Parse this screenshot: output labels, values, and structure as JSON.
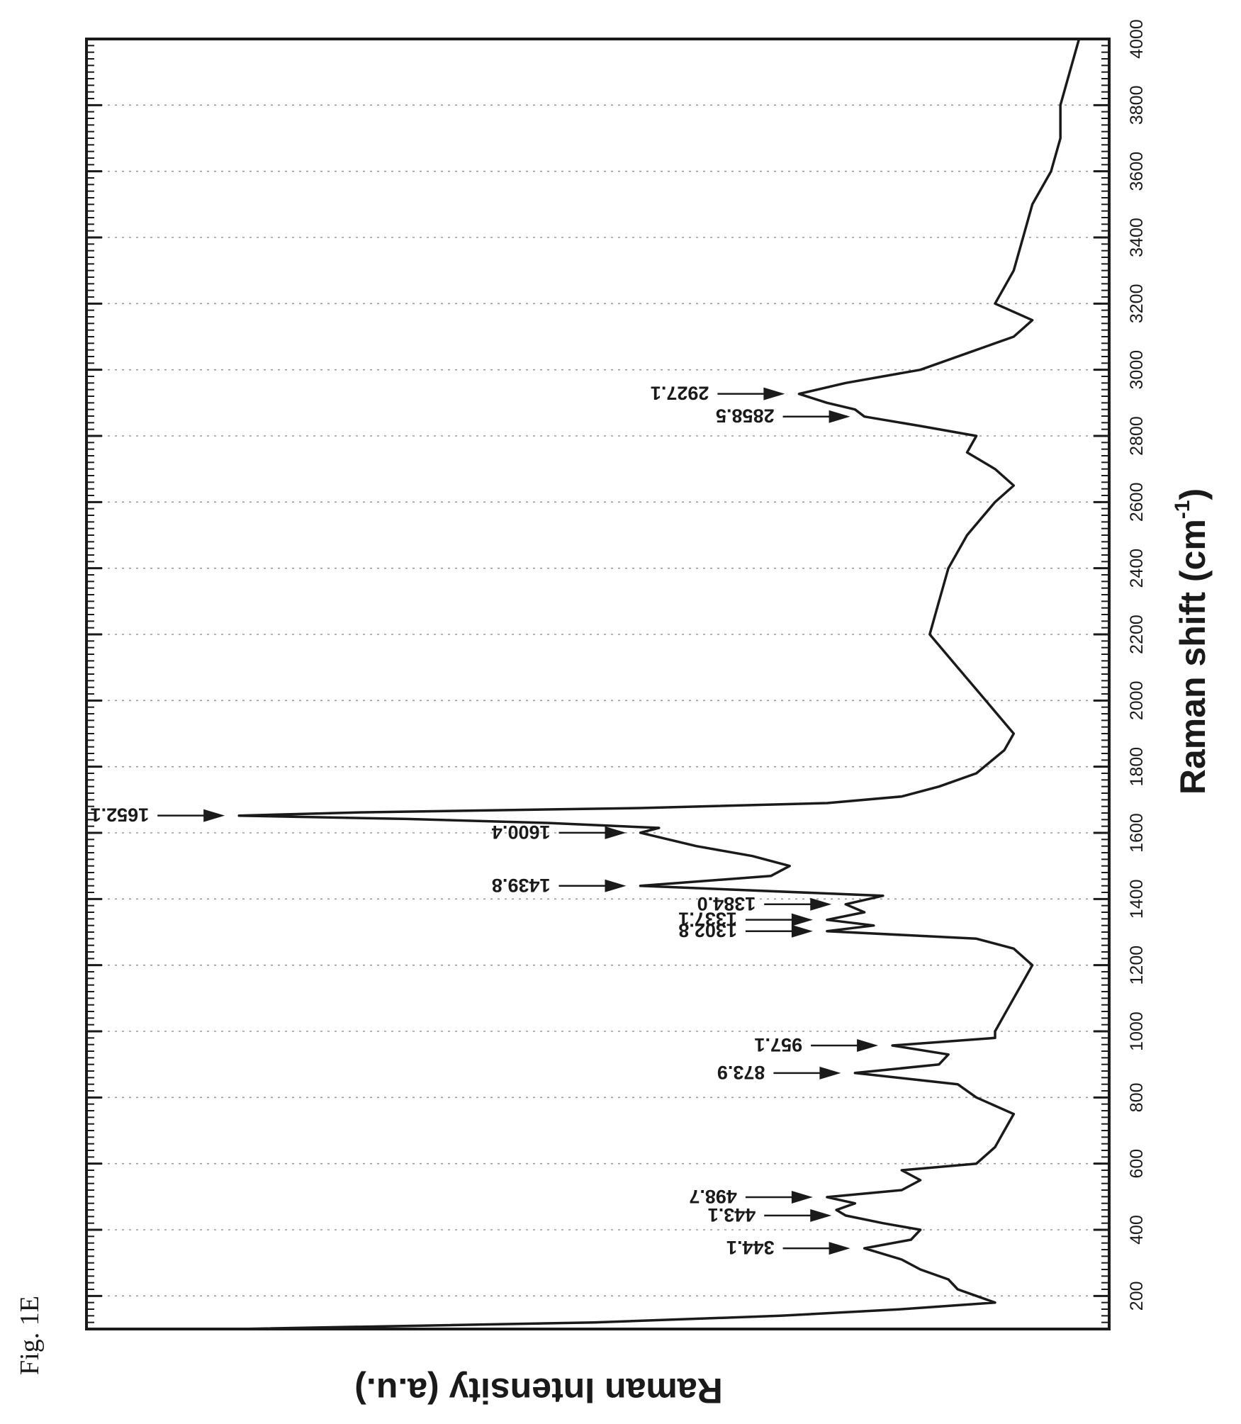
{
  "figure_label": "Fig. 1E",
  "chart_data": {
    "type": "line",
    "title": "",
    "xlabel": "Raman shift (cm",
    "xlabel_sup": "-1",
    "ylabel": "Raman Intensity (a.u.)",
    "xlim": [
      100,
      4000
    ],
    "ylim": [
      0,
      1
    ],
    "x_ticks": [
      200,
      400,
      600,
      800,
      1000,
      1200,
      1400,
      1600,
      1800,
      2000,
      2200,
      2400,
      2600,
      2800,
      3000,
      3200,
      3400,
      3600,
      3800,
      4000
    ],
    "grid": "vertical dotted lines at x ticks",
    "orientation": "rotated 90 degrees (x axis runs bottom to top)",
    "series": [
      {
        "x": [
          100,
          120,
          140,
          160,
          180,
          200,
          220,
          250,
          280,
          310,
          344.1,
          370,
          400,
          420,
          443.1,
          460,
          480,
          498.7,
          520,
          550,
          580,
          600,
          650,
          700,
          750,
          800,
          840,
          873.9,
          900,
          930,
          957.1,
          980,
          1000,
          1050,
          1100,
          1150,
          1200,
          1250,
          1280,
          1302.8,
          1320,
          1337.1,
          1360,
          1384.0,
          1410,
          1439.8,
          1470,
          1500,
          1530,
          1560,
          1600.4,
          1615,
          1630,
          1642,
          1652.1,
          1662,
          1675,
          1690,
          1710,
          1740,
          1780,
          1850,
          1900,
          2000,
          2100,
          2200,
          2300,
          2400,
          2500,
          2600,
          2650,
          2700,
          2750,
          2800,
          2830,
          2858.5,
          2880,
          2900,
          2927.1,
          2960,
          3000,
          3050,
          3100,
          3150,
          3200,
          3300,
          3400,
          3500,
          3600,
          3700,
          3800,
          3900,
          4000
        ],
        "y": [
          0.93,
          0.55,
          0.35,
          0.22,
          0.12,
          0.14,
          0.16,
          0.17,
          0.2,
          0.22,
          0.26,
          0.21,
          0.2,
          0.24,
          0.28,
          0.29,
          0.27,
          0.3,
          0.22,
          0.2,
          0.22,
          0.14,
          0.12,
          0.11,
          0.1,
          0.14,
          0.16,
          0.27,
          0.18,
          0.17,
          0.23,
          0.12,
          0.12,
          0.11,
          0.1,
          0.09,
          0.08,
          0.1,
          0.14,
          0.3,
          0.25,
          0.3,
          0.26,
          0.28,
          0.24,
          0.5,
          0.36,
          0.34,
          0.38,
          0.44,
          0.5,
          0.48,
          0.6,
          0.75,
          0.93,
          0.8,
          0.5,
          0.3,
          0.22,
          0.18,
          0.14,
          0.11,
          0.1,
          0.13,
          0.16,
          0.19,
          0.18,
          0.17,
          0.15,
          0.12,
          0.1,
          0.12,
          0.15,
          0.14,
          0.2,
          0.26,
          0.27,
          0.3,
          0.33,
          0.28,
          0.2,
          0.15,
          0.1,
          0.08,
          0.12,
          0.1,
          0.09,
          0.08,
          0.06,
          0.05,
          0.05,
          0.04,
          0.03
        ]
      }
    ],
    "annotations": [
      {
        "x": 344.1,
        "label": "344.1"
      },
      {
        "x": 443.1,
        "label": "443.1"
      },
      {
        "x": 498.7,
        "label": "498.7"
      },
      {
        "x": 873.9,
        "label": "873.9"
      },
      {
        "x": 957.1,
        "label": "957.1"
      },
      {
        "x": 1302.8,
        "label": "1302.8"
      },
      {
        "x": 1337.1,
        "label": "1337.1"
      },
      {
        "x": 1384.0,
        "label": "1384.0"
      },
      {
        "x": 1439.8,
        "label": "1439.8"
      },
      {
        "x": 1600.4,
        "label": "1600.4"
      },
      {
        "x": 1652.1,
        "label": "1652.1"
      },
      {
        "x": 2858.5,
        "label": "2858.5"
      },
      {
        "x": 2927.1,
        "label": "2927.1"
      }
    ]
  }
}
